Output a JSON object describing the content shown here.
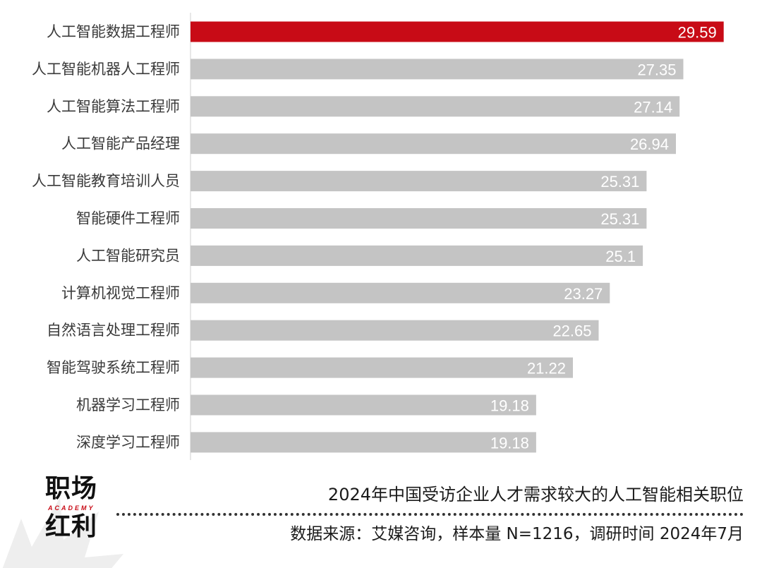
{
  "chart_data": {
    "type": "bar",
    "orientation": "horizontal",
    "categories": [
      "人工智能数据工程师",
      "人工智能机器人工程师",
      "人工智能算法工程师",
      "人工智能产品经理",
      "人工智能教育培训人员",
      "智能硬件工程师",
      "人工智能研究员",
      "计算机视觉工程师",
      "自然语言处理工程师",
      "智能驾驶系统工程师",
      "机器学习工程师",
      "深度学习工程师"
    ],
    "values": [
      29.59,
      27.35,
      27.14,
      26.94,
      25.31,
      25.31,
      25.1,
      23.27,
      22.65,
      21.22,
      19.18,
      19.18
    ],
    "value_labels": [
      "29.59",
      "27.35",
      "27.14",
      "26.94",
      "25.31",
      "25.31",
      "25.1",
      "23.27",
      "22.65",
      "21.22",
      "19.18",
      "19.18"
    ],
    "highlight_index": 0,
    "colors": {
      "highlight": "#c80b16",
      "bar": "#c4c4c4",
      "value_text": "#ffffff",
      "axis": "#d0d0d0"
    },
    "xlim": [
      0,
      30
    ],
    "grid": false,
    "legend": "none",
    "data_labels": "inside-end"
  },
  "footer": {
    "logo_top": "职场",
    "logo_sub": "ACADEMY",
    "logo_bottom": "红利",
    "title": "2024年中国受访企业人才需求较大的人工智能相关职位",
    "source": "数据来源：艾媒咨询，样本量 N=1216，调研时间 2024年7月"
  }
}
